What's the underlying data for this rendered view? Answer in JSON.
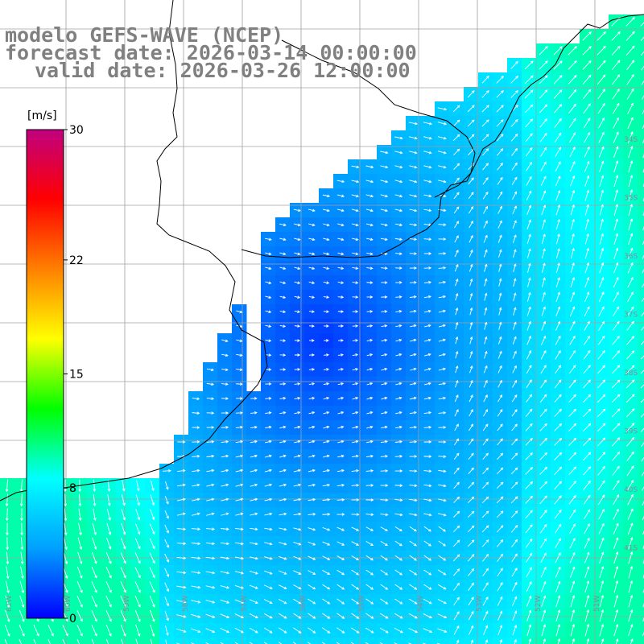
{
  "title": {
    "line1": "modelo GEFS-WAVE (NCEP)",
    "line2": "forecast date: 2026-03-14 00:00:00",
    "line3": "valid date: 2026-03-26 12:00:00"
  },
  "colorbar": {
    "unit": "[m/s]",
    "ticks": [
      {
        "value": 30,
        "label": "30"
      },
      {
        "value": 22,
        "label": "22"
      },
      {
        "value": 15,
        "label": "15"
      },
      {
        "value": 8,
        "label": "8"
      },
      {
        "value": 0,
        "label": "0"
      }
    ],
    "stops": [
      "#0000ff",
      "#00a0ff",
      "#00ffff",
      "#00ff00",
      "#ffff00",
      "#ff8000",
      "#ff0000",
      "#c00080"
    ]
  },
  "map_labels": {
    "bottom": [
      "61W",
      "60W",
      "59W",
      "58W",
      "57W",
      "56W",
      "55W",
      "54W",
      "53W",
      "52W",
      "51W"
    ],
    "right": [
      "34S",
      "35S",
      "36S",
      "37S",
      "38S",
      "39S",
      "40S",
      "41S"
    ]
  },
  "colors": {
    "ocean_calm": "#0010ee",
    "ocean_mid": "#1070f0",
    "ocean_strong": "#20d0e8",
    "land": "#ffffff",
    "grid": "#a0a0a0"
  }
}
